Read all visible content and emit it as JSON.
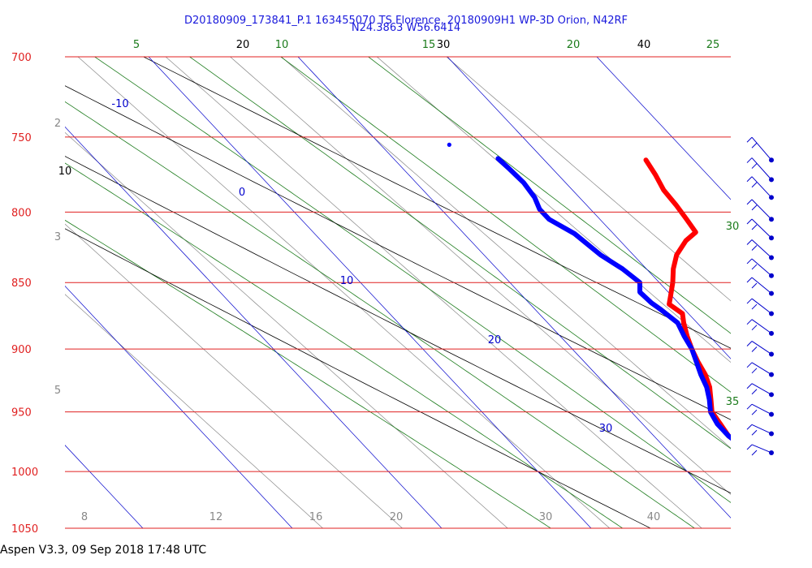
{
  "header": {
    "title_line1": "D20180909_173841_P.1 163455070 TS Florence, 20180909H1 WP-3D Orion, N42RF",
    "title_line2": "N24.3863 W56.6414"
  },
  "footer": {
    "text": "Aspen V3.3, 09 Sep 2018  17:48 UTC"
  },
  "colors": {
    "isobar": "#e02020",
    "isotherm": "#0000cc",
    "dry_adiabat": "#000000",
    "moist_adiabat": "#1a7a1a",
    "mixing_ratio": "#888888",
    "temperature": "#ff0000",
    "dewpoint": "#0000ff",
    "wind": "#0000cc"
  },
  "chart_data": {
    "type": "skew-t log-p sounding",
    "pressure_axis": {
      "unit": "hPa",
      "range": [
        1050,
        700
      ],
      "log_scale": true,
      "ticks": [
        700,
        750,
        800,
        850,
        900,
        950,
        1000,
        1050
      ],
      "tick_labels": [
        "700",
        "750",
        "800",
        "850",
        "900",
        "950",
        "1000",
        "1050"
      ]
    },
    "isotherm_labels": [
      "-10",
      "0",
      "10",
      "20",
      "30"
    ],
    "dry_adiabat_labels": [
      "10",
      "20",
      "30",
      "40"
    ],
    "moist_adiabat_labels": [
      "5",
      "10",
      "15",
      "20",
      "25",
      "30",
      "35"
    ],
    "mixing_ratio_labels": [
      "2",
      "3",
      "5",
      "8",
      "12",
      "16",
      "20",
      "30",
      "40"
    ],
    "series": [
      {
        "key": "temperature",
        "points": [
          [
            987,
            25.8
          ],
          [
            980,
            25.4
          ],
          [
            970,
            25.0
          ],
          [
            960,
            25.2
          ],
          [
            950,
            25.4
          ],
          [
            940,
            26.1
          ],
          [
            930,
            26.8
          ],
          [
            920,
            27.3
          ],
          [
            910,
            27.6
          ],
          [
            900,
            28.0
          ],
          [
            890,
            28.5
          ],
          [
            880,
            29.1
          ],
          [
            873,
            29.6
          ],
          [
            866,
            29.3
          ],
          [
            860,
            29.9
          ],
          [
            850,
            30.9
          ],
          [
            840,
            31.8
          ],
          [
            830,
            32.9
          ],
          [
            820,
            34.4
          ],
          [
            814,
            35.6
          ],
          [
            805,
            35.8
          ],
          [
            795,
            36.0
          ],
          [
            785,
            36.1
          ],
          [
            775,
            36.5
          ],
          [
            765,
            36.8
          ]
        ]
      },
      {
        "key": "dewpoint",
        "points": [
          [
            987,
            25.5
          ],
          [
            980,
            25.3
          ],
          [
            970,
            25.0
          ],
          [
            960,
            25.0
          ],
          [
            950,
            25.3
          ],
          [
            940,
            26.0
          ],
          [
            930,
            26.6
          ],
          [
            920,
            27.0
          ],
          [
            910,
            27.5
          ],
          [
            900,
            28.0
          ],
          [
            890,
            28.3
          ],
          [
            880,
            28.7
          ],
          [
            870,
            28.4
          ],
          [
            865,
            28.2
          ],
          [
            857,
            28.1
          ],
          [
            850,
            28.7
          ],
          [
            840,
            28.4
          ],
          [
            830,
            27.8
          ],
          [
            815,
            27.4
          ],
          [
            805,
            26.6
          ],
          [
            798,
            26.6
          ],
          [
            790,
            27.0
          ],
          [
            780,
            27.2
          ],
          [
            770,
            27.1
          ],
          [
            764,
            27.0
          ]
        ]
      }
    ],
    "isolated_dewpoint_point": [
      755,
      24.6
    ],
    "wind_barbs": {
      "note": "wind barbs plotted at right margin at these pressure levels",
      "levels_hPa": [
        765,
        778,
        790,
        805,
        818,
        832,
        845,
        858,
        873,
        888,
        904,
        920,
        936,
        952,
        968,
        984
      ]
    }
  }
}
